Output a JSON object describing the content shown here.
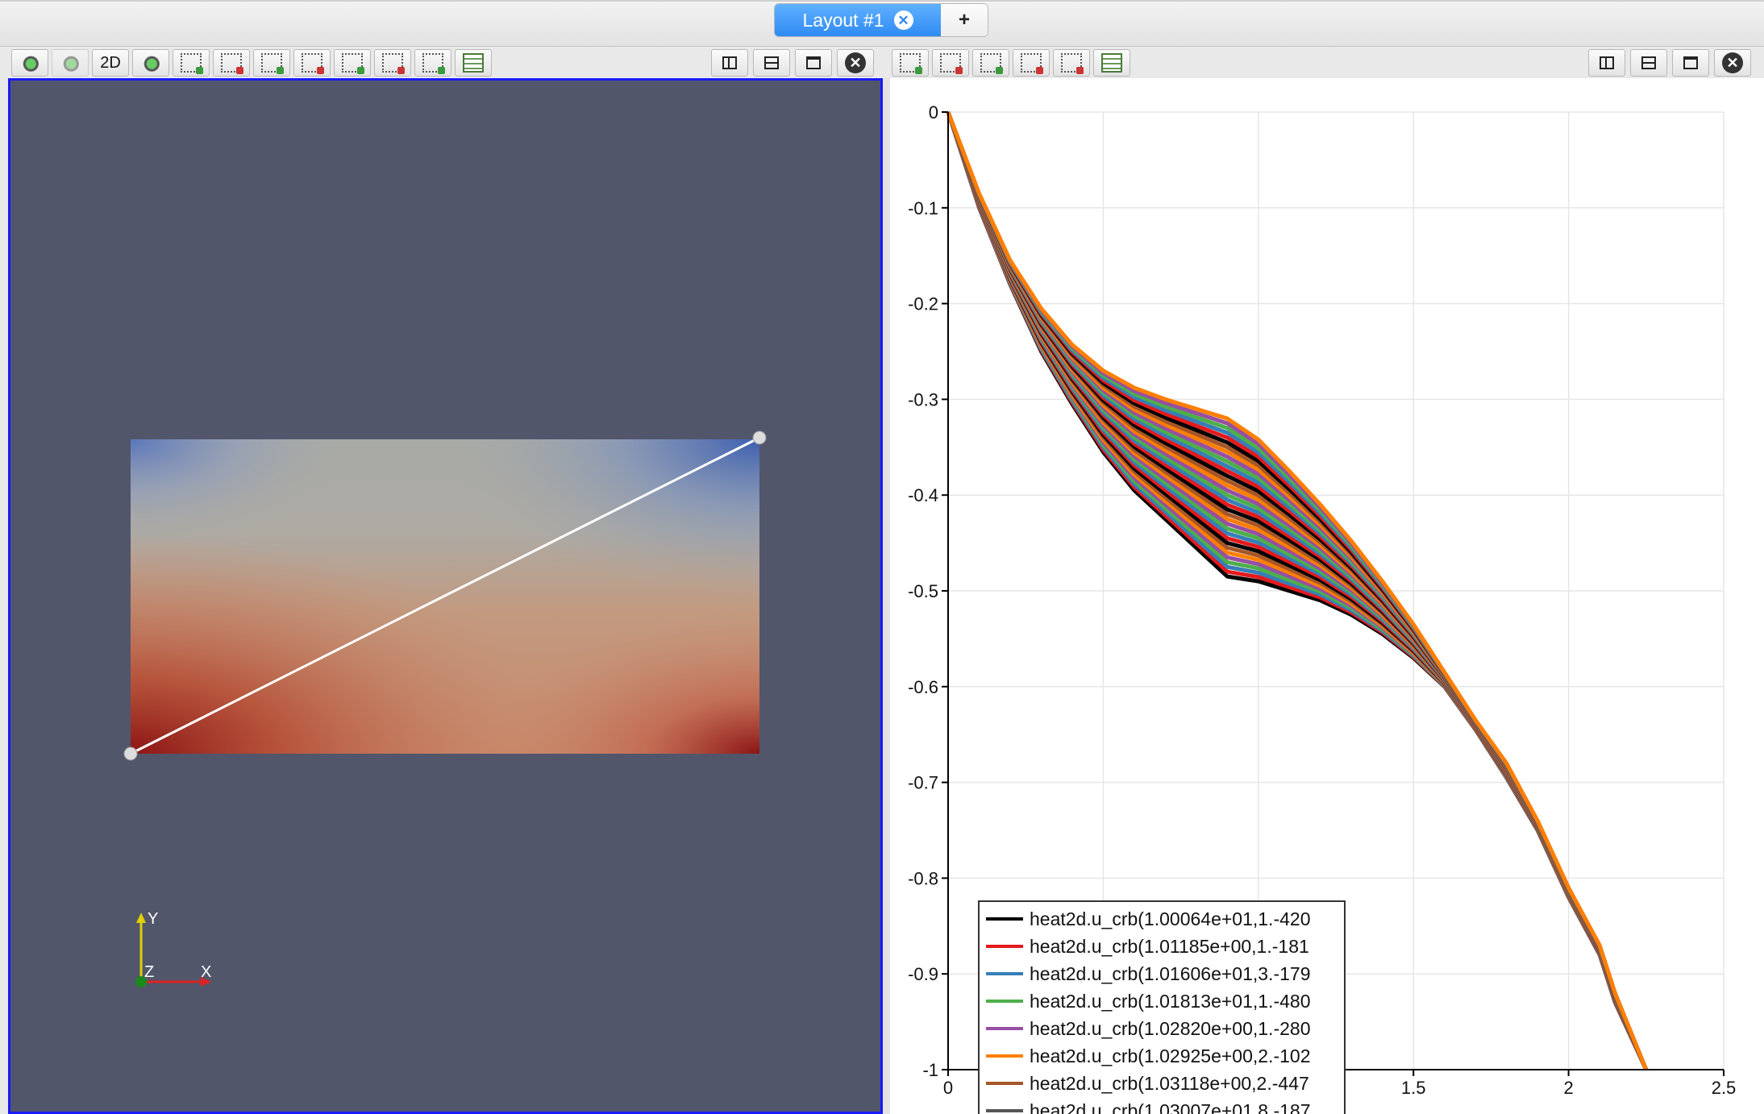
{
  "layout_tabs": {
    "active_label": "Layout #1",
    "add_label": "+"
  },
  "render_toolbar": {
    "two_d_label": "2D",
    "icons": [
      "reset-camera-icon",
      "zoom-data-icon",
      "two-d-toggle",
      "zoom-to-box-icon",
      "select-points-on-icon",
      "select-cells-on-icon",
      "select-points-through-icon",
      "select-cells-through-icon",
      "interactive-select-icon",
      "polygon-select-icon",
      "grow-selection-icon",
      "find-data-icon"
    ]
  },
  "view_controls": {
    "icons": [
      "split-horizontal-icon",
      "split-vertical-icon",
      "maximize-icon",
      "close-icon"
    ],
    "close_glyph": "✕"
  },
  "chart_toolbar": {
    "icons": [
      "select-points-icon",
      "select-cells-icon",
      "add-selection-icon",
      "subtract-selection-icon",
      "toggle-selection-icon",
      "chart-settings-icon"
    ]
  },
  "render_view": {
    "background": "#51566b",
    "probe_line": "white",
    "orientation_axes": {
      "y": "Y",
      "z": "Z",
      "x": "X"
    }
  },
  "chart_data": {
    "type": "line",
    "title": "",
    "xlabel": "",
    "ylabel": "",
    "xlim": [
      0,
      2.5
    ],
    "ylim": [
      -1,
      0
    ],
    "x_ticks": [
      "0",
      "0.5",
      "1",
      "1.5",
      "2",
      "2.5"
    ],
    "y_ticks": [
      "0",
      "-0.1",
      "-0.2",
      "-0.3",
      "-0.4",
      "-0.5",
      "-0.6",
      "-0.7",
      "-0.8",
      "-0.9",
      "-1"
    ],
    "grid": true,
    "legend_position": "bottom-left",
    "curve_x": [
      0,
      0.1,
      0.2,
      0.3,
      0.4,
      0.5,
      0.6,
      0.7,
      0.8,
      0.9,
      1.0,
      1.1,
      1.2,
      1.3,
      1.4,
      1.5,
      1.6,
      1.7,
      1.8,
      1.9,
      2.0,
      2.1,
      2.15,
      2.25
    ],
    "upper_envelope": [
      0,
      -0.085,
      -0.155,
      -0.205,
      -0.243,
      -0.27,
      -0.288,
      -0.3,
      -0.31,
      -0.32,
      -0.342,
      -0.375,
      -0.41,
      -0.448,
      -0.49,
      -0.535,
      -0.585,
      -0.635,
      -0.68,
      -0.74,
      -0.81,
      -0.87,
      -0.92,
      -1.0
    ],
    "lower_envelope": [
      0,
      -0.1,
      -0.18,
      -0.25,
      -0.305,
      -0.355,
      -0.395,
      -0.425,
      -0.455,
      -0.485,
      -0.49,
      -0.5,
      -0.51,
      -0.525,
      -0.545,
      -0.57,
      -0.6,
      -0.645,
      -0.695,
      -0.75,
      -0.82,
      -0.88,
      -0.93,
      -1.0
    ],
    "band_curves": 34,
    "band_colors": [
      "#000000",
      "#e41a1c",
      "#377eb8",
      "#4daf4a",
      "#984ea3",
      "#ff7f00",
      "#a65628"
    ],
    "series": [
      {
        "name": "heat2d.u_crb(1.00064e+01,1.-420",
        "color": "#000000"
      },
      {
        "name": "heat2d.u_crb(1.01185e+00,1.-181",
        "color": "#e41a1c"
      },
      {
        "name": "heat2d.u_crb(1.01606e+01,3.-179",
        "color": "#377eb8"
      },
      {
        "name": "heat2d.u_crb(1.01813e+01,1.-480",
        "color": "#4daf4a"
      },
      {
        "name": "heat2d.u_crb(1.02820e+00,1.-280",
        "color": "#984ea3"
      },
      {
        "name": "heat2d.u_crb(1.02925e+00,2.-102",
        "color": "#ff7f00"
      },
      {
        "name": "heat2d.u_crb(1.03118e+00,2.-447",
        "color": "#a65628"
      },
      {
        "name": "heat2d.u_crb(1.03007e+01,8.-187",
        "color": "#555555"
      }
    ]
  }
}
